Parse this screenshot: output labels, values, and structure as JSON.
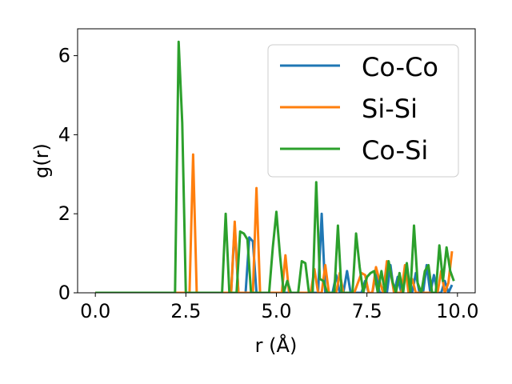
{
  "chart_data": {
    "type": "line",
    "xlabel": "r (Å)",
    "ylabel": "g(r)",
    "xlim": [
      -0.49,
      10.49
    ],
    "ylim": [
      0,
      6.68
    ],
    "xticks": [
      0.0,
      2.5,
      5.0,
      7.5,
      10.0
    ],
    "xtick_labels": [
      "0.0",
      "2.5",
      "5.0",
      "7.5",
      "10.0"
    ],
    "yticks": [
      0,
      2,
      4,
      6
    ],
    "ytick_labels": [
      "0",
      "2",
      "4",
      "6"
    ],
    "grid": false,
    "legend_position": "upper right",
    "series": [
      {
        "name": "Co-Co",
        "color": "#1f77b4",
        "x": [
          0.0,
          3.75,
          3.85,
          3.95,
          4.05,
          4.15,
          4.25,
          4.35,
          4.45,
          4.55,
          4.65,
          5.95,
          6.05,
          6.15,
          6.25,
          6.35,
          6.55,
          6.65,
          6.75,
          6.85,
          6.95,
          7.05,
          7.15,
          7.35,
          7.45,
          7.55,
          7.65,
          7.75,
          7.85,
          7.95,
          8.05,
          8.15,
          8.25,
          8.35,
          8.45,
          8.55,
          8.65,
          8.75,
          8.85,
          8.95,
          9.05,
          9.15,
          9.25,
          9.35,
          9.45,
          9.55,
          9.65,
          9.75,
          9.85
        ],
        "y": [
          0.0,
          0.0,
          1.7,
          0.0,
          0.0,
          0.0,
          1.4,
          1.3,
          0.0,
          0.0,
          0.0,
          0.0,
          0.0,
          0.0,
          2.0,
          0.0,
          0.0,
          0.45,
          0.0,
          0.0,
          0.55,
          0.0,
          0.0,
          0.0,
          0.3,
          0.0,
          0.0,
          0.5,
          0.0,
          0.0,
          0.0,
          0.7,
          0.0,
          0.4,
          0.0,
          0.6,
          0.3,
          0.0,
          0.5,
          0.0,
          0.0,
          0.7,
          0.0,
          0.45,
          0.0,
          0.0,
          0.3,
          0.0,
          0.2
        ]
      },
      {
        "name": "Si-Si",
        "color": "#ff7f0e",
        "x": [
          0.0,
          2.6,
          2.7,
          2.8,
          3.5,
          3.75,
          3.85,
          3.95,
          4.15,
          4.35,
          4.45,
          4.55,
          5.15,
          5.25,
          5.35,
          5.95,
          6.05,
          6.15,
          6.25,
          6.35,
          6.45,
          6.55,
          6.65,
          6.75,
          6.85,
          6.95,
          7.05,
          7.15,
          7.35,
          7.45,
          7.55,
          7.65,
          7.75,
          7.85,
          7.95,
          8.05,
          8.15,
          8.25,
          8.35,
          8.45,
          8.55,
          8.65,
          8.75,
          8.85,
          8.95,
          9.05,
          9.15,
          9.25,
          9.35,
          9.45,
          9.55,
          9.65,
          9.75,
          9.85
        ],
        "y": [
          0.0,
          0.0,
          3.5,
          0.0,
          0.0,
          0.0,
          1.8,
          0.0,
          0.0,
          0.0,
          2.65,
          0.0,
          0.0,
          0.95,
          0.0,
          0.0,
          0.6,
          0.0,
          0.0,
          0.7,
          0.0,
          0.0,
          0.0,
          0.5,
          0.0,
          0.0,
          0.0,
          0.0,
          0.5,
          0.45,
          0.0,
          0.0,
          0.65,
          0.3,
          0.0,
          0.8,
          0.55,
          0.0,
          0.0,
          0.0,
          0.7,
          0.0,
          0.35,
          0.0,
          0.0,
          0.0,
          0.0,
          0.0,
          0.0,
          0.0,
          0.55,
          0.0,
          0.25,
          1.05
        ]
      },
      {
        "name": "Co-Si",
        "color": "#2ca02c",
        "x": [
          0.0,
          2.2,
          2.3,
          2.4,
          2.5,
          3.5,
          3.6,
          3.7,
          3.8,
          3.9,
          4.0,
          4.1,
          4.2,
          4.3,
          4.4,
          4.5,
          4.6,
          4.7,
          4.8,
          4.9,
          5.0,
          5.1,
          5.2,
          5.3,
          5.4,
          5.5,
          5.6,
          5.7,
          5.8,
          5.9,
          6.0,
          6.1,
          6.2,
          6.3,
          6.4,
          6.5,
          6.6,
          6.7,
          6.8,
          6.9,
          7.0,
          7.1,
          7.2,
          7.3,
          7.4,
          7.5,
          7.6,
          7.7,
          7.8,
          7.9,
          8.0,
          8.1,
          8.2,
          8.3,
          8.4,
          8.5,
          8.6,
          8.7,
          8.8,
          8.9,
          9.0,
          9.1,
          9.2,
          9.3,
          9.4,
          9.5,
          9.6,
          9.7,
          9.8,
          9.9
        ],
        "y": [
          0.0,
          0.0,
          6.35,
          4.3,
          0.0,
          0.0,
          2.0,
          0.0,
          0.0,
          0.0,
          1.55,
          1.5,
          1.35,
          0.0,
          0.0,
          0.0,
          0.0,
          0.0,
          0.0,
          1.15,
          2.05,
          0.95,
          0.0,
          0.3,
          0.0,
          0.0,
          0.0,
          0.8,
          0.75,
          0.0,
          0.0,
          2.8,
          0.35,
          0.3,
          0.0,
          0.0,
          0.0,
          1.7,
          0.0,
          0.0,
          0.0,
          0.0,
          1.5,
          0.65,
          0.0,
          0.4,
          0.5,
          0.55,
          0.0,
          0.55,
          0.0,
          0.8,
          0.3,
          0.0,
          0.5,
          0.0,
          0.75,
          0.0,
          1.7,
          0.25,
          0.0,
          0.55,
          0.7,
          0.0,
          0.0,
          1.2,
          0.3,
          1.15,
          0.55,
          0.3
        ]
      }
    ]
  }
}
